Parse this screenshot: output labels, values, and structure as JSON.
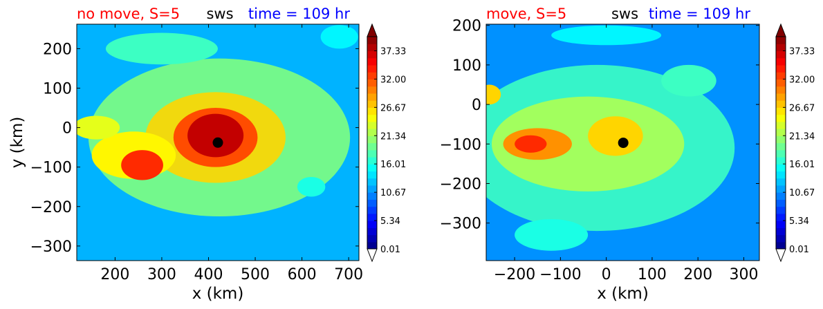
{
  "colorbar_ticks": [
    "37.33",
    "32.00",
    "26.67",
    "21.34",
    "16.01",
    "10.67",
    "5.34",
    "0.01"
  ],
  "colormap": [
    "#00007f",
    "#0000ff",
    "#0080ff",
    "#00ffff",
    "#80ff80",
    "#ffff00",
    "#ff8000",
    "#ff0000",
    "#7f0000"
  ],
  "chart_data": [
    {
      "type": "heatmap",
      "title_left": "no move, S=5",
      "title_left_color": "#ff0000",
      "title_center": "sws",
      "title_center_color": "#000000",
      "title_right": "time = 109 hr",
      "title_right_color": "#0000ff",
      "xlabel": "x (km)",
      "ylabel": "y (km)",
      "xlim": [
        118,
        722
      ],
      "ylim": [
        -337,
        262
      ],
      "xticks": [
        200,
        300,
        400,
        500,
        600,
        700
      ],
      "yticks": [
        200,
        100,
        0,
        -100,
        -200,
        -300
      ],
      "value_range": [
        0.01,
        40.0
      ],
      "colorbar_ticks": [
        37.33,
        32.0,
        26.67,
        21.34,
        16.01,
        10.67,
        5.34,
        0.01
      ],
      "marker": {
        "x": 420,
        "y": -38
      },
      "background_level": 12,
      "features": [
        {
          "kind": "ring",
          "x": 423,
          "y": -25,
          "rx": 280,
          "ry": 200,
          "value": 20
        },
        {
          "kind": "ring",
          "x": 415,
          "y": -25,
          "rx": 150,
          "ry": 115,
          "value": 27
        },
        {
          "kind": "blob",
          "x": 240,
          "y": -70,
          "rx": 90,
          "ry": 60,
          "value": 25
        },
        {
          "kind": "blob",
          "x": 258,
          "y": -95,
          "rx": 45,
          "ry": 38,
          "value": 33
        },
        {
          "kind": "blob",
          "x": 160,
          "y": 0,
          "rx": 50,
          "ry": 30,
          "value": 24
        },
        {
          "kind": "blob",
          "x": 415,
          "y": -25,
          "rx": 90,
          "ry": 75,
          "value": 32
        },
        {
          "kind": "blob",
          "x": 415,
          "y": -20,
          "rx": 60,
          "ry": 55,
          "value": 37
        },
        {
          "kind": "blob",
          "x": 300,
          "y": 200,
          "rx": 120,
          "ry": 40,
          "value": 17
        },
        {
          "kind": "blob",
          "x": 680,
          "y": 230,
          "rx": 40,
          "ry": 30,
          "value": 15
        },
        {
          "kind": "blob",
          "x": 620,
          "y": -150,
          "rx": 30,
          "ry": 25,
          "value": 16
        }
      ]
    },
    {
      "type": "heatmap",
      "title_left": "move, S=5",
      "title_left_color": "#ff0000",
      "title_center": "sws",
      "title_center_color": "#000000",
      "title_right": "time = 109 hr",
      "title_right_color": "#0000ff",
      "xlabel": "x (km)",
      "ylabel": "",
      "xlim": [
        -262,
        334
      ],
      "ylim": [
        -395,
        203
      ],
      "xticks": [
        -200,
        -100,
        0,
        100,
        200,
        300
      ],
      "yticks": [
        200,
        100,
        0,
        -100,
        -200,
        -300
      ],
      "value_range": [
        0.01,
        40.0
      ],
      "colorbar_ticks": [
        37.33,
        32.0,
        26.67,
        21.34,
        16.01,
        10.67,
        5.34,
        0.01
      ],
      "marker": {
        "x": 37,
        "y": -97
      },
      "background_level": 11,
      "features": [
        {
          "kind": "ring",
          "x": -20,
          "y": -110,
          "rx": 300,
          "ry": 210,
          "value": 18
        },
        {
          "kind": "blob",
          "x": -40,
          "y": -100,
          "rx": 210,
          "ry": 120,
          "value": 22
        },
        {
          "kind": "blob",
          "x": -150,
          "y": -100,
          "rx": 75,
          "ry": 40,
          "value": 30
        },
        {
          "kind": "blob",
          "x": -165,
          "y": -100,
          "rx": 35,
          "ry": 22,
          "value": 34
        },
        {
          "kind": "blob",
          "x": 20,
          "y": -80,
          "rx": 60,
          "ry": 50,
          "value": 27
        },
        {
          "kind": "blob",
          "x": -255,
          "y": 25,
          "rx": 25,
          "ry": 25,
          "value": 27
        },
        {
          "kind": "blob",
          "x": 180,
          "y": 60,
          "rx": 60,
          "ry": 40,
          "value": 17
        },
        {
          "kind": "blob",
          "x": 0,
          "y": 175,
          "rx": 120,
          "ry": 25,
          "value": 15
        },
        {
          "kind": "blob",
          "x": -120,
          "y": -330,
          "rx": 80,
          "ry": 40,
          "value": 16
        }
      ]
    }
  ]
}
